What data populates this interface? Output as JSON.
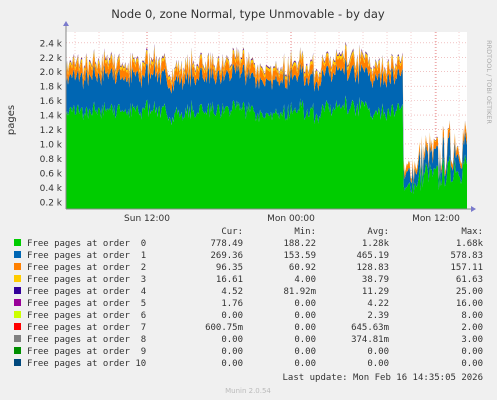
{
  "title": "Node 0, zone Normal, type Unmovable - by day",
  "ylabel": "pages",
  "side_label": "RRDTOOL / TOBI OETIKER",
  "footer_update": "Last update: Mon Feb 16 14:35:05 2026",
  "footer_version": "Munin 2.0.54",
  "colors": {
    "background": "#f0f0f0",
    "plot_bg": "#ffffff",
    "grid": "#e8a0a0",
    "axis": "#888888",
    "text": "#333333"
  },
  "chart_data": {
    "type": "area",
    "stacked": true,
    "x_axis": "time",
    "x_ticks": [
      "Sun 12:00",
      "Mon 00:00",
      "Mon 12:00"
    ],
    "y_ticks": [
      "0.2 k",
      "0.4 k",
      "0.6 k",
      "0.8 k",
      "1.0 k",
      "1.2 k",
      "1.4 k",
      "1.6 k",
      "1.8 k",
      "2.0 k",
      "2.2 k",
      "2.4 k"
    ],
    "ylim": [
      100,
      2550
    ],
    "grid": true,
    "legend_placement": "bottom",
    "legend_columns": [
      "Cur:",
      "Min:",
      "Avg:",
      "Max:"
    ],
    "series": [
      {
        "name": "Free pages at order  0",
        "color": "#00cc00",
        "cur": "778.49",
        "min": "188.22",
        "avg": "1.28k",
        "max": "1.68k",
        "approx_profile": [
          1400,
          1480,
          1450,
          1500,
          1420,
          1460,
          1510,
          1390,
          1450,
          1480,
          1420,
          1470,
          1500,
          1440,
          1380,
          1460,
          1490,
          1430,
          1470,
          1500,
          1520,
          1460,
          1440,
          1480,
          300,
          450,
          520,
          600,
          560,
          650,
          700,
          780
        ]
      },
      {
        "name": "Free pages at order  1",
        "color": "#0066b3",
        "cur": "269.36",
        "min": "153.59",
        "avg": "465.19",
        "max": "578.83",
        "approx_profile": [
          460,
          480,
          470,
          490,
          460,
          470,
          500,
          450,
          470,
          480,
          460,
          470,
          490,
          460,
          450,
          470,
          480,
          460,
          470,
          490,
          480,
          470,
          460,
          480,
          170,
          190,
          210,
          230,
          220,
          240,
          250,
          270
        ]
      },
      {
        "name": "Free pages at order  2",
        "color": "#ff8000",
        "cur": "96.35",
        "min": "60.92",
        "avg": "128.83",
        "max": "157.11",
        "approx_profile": [
          130,
          140,
          135,
          145,
          130,
          135,
          150,
          125,
          135,
          140,
          130,
          135,
          145,
          130,
          125,
          135,
          140,
          130,
          135,
          145,
          140,
          135,
          130,
          140,
          65,
          70,
          75,
          80,
          78,
          85,
          90,
          96
        ]
      },
      {
        "name": "Free pages at order  3",
        "color": "#ffcc00",
        "cur": "16.61",
        "min": "4.00",
        "avg": "38.79",
        "max": "61.63",
        "approx_profile": [
          40,
          45,
          42,
          48,
          40,
          42,
          50,
          38,
          42,
          45,
          40,
          42,
          48,
          40,
          38,
          42,
          45,
          40,
          42,
          48,
          45,
          42,
          40,
          45,
          8,
          10,
          12,
          14,
          12,
          14,
          15,
          17
        ]
      },
      {
        "name": "Free pages at order  4",
        "color": "#330099",
        "cur": "4.52",
        "min": "81.92m",
        "avg": "11.29",
        "max": "25.00",
        "approx_profile": [
          12,
          14,
          12,
          15,
          11,
          12,
          16,
          10,
          12,
          13,
          11,
          12,
          14,
          11,
          10,
          12,
          13,
          11,
          12,
          14,
          13,
          12,
          11,
          13,
          2,
          3,
          3,
          4,
          4,
          4,
          5,
          5
        ]
      },
      {
        "name": "Free pages at order  5",
        "color": "#990099",
        "cur": "1.76",
        "min": "0.00",
        "avg": "4.22",
        "max": "16.00",
        "approx_profile": [
          4,
          5,
          4,
          6,
          4,
          4,
          6,
          4,
          4,
          5,
          4,
          4,
          5,
          4,
          4,
          4,
          5,
          4,
          4,
          5,
          5,
          4,
          4,
          5,
          1,
          1,
          1,
          2,
          2,
          2,
          2,
          2
        ]
      },
      {
        "name": "Free pages at order  6",
        "color": "#ccff00",
        "cur": "0.00",
        "min": "0.00",
        "avg": "2.39",
        "max": "8.00",
        "approx_profile": [
          2,
          3,
          2,
          3,
          2,
          2,
          3,
          2,
          2,
          3,
          2,
          2,
          3,
          2,
          2,
          2,
          3,
          2,
          2,
          3,
          3,
          2,
          2,
          3,
          0,
          0,
          0,
          0,
          0,
          0,
          0,
          0
        ]
      },
      {
        "name": "Free pages at order  7",
        "color": "#ff0000",
        "cur": "600.75m",
        "min": "0.00",
        "avg": "645.63m",
        "max": "2.00",
        "approx_profile": [
          1,
          1,
          1,
          1,
          1,
          1,
          1,
          1,
          1,
          1,
          1,
          1,
          1,
          1,
          1,
          1,
          1,
          1,
          1,
          1,
          1,
          1,
          1,
          1,
          0,
          0,
          0,
          0,
          0,
          0,
          0,
          0
        ]
      },
      {
        "name": "Free pages at order  8",
        "color": "#808080",
        "cur": "0.00",
        "min": "0.00",
        "avg": "374.81m",
        "max": "3.00",
        "approx_profile": [
          0,
          1,
          0,
          1,
          0,
          0,
          1,
          0,
          0,
          1,
          0,
          0,
          1,
          0,
          0,
          0,
          1,
          0,
          0,
          1,
          1,
          0,
          0,
          1,
          0,
          0,
          0,
          0,
          0,
          0,
          0,
          0
        ]
      },
      {
        "name": "Free pages at order  9",
        "color": "#008f00",
        "cur": "0.00",
        "min": "0.00",
        "avg": "0.00",
        "max": "0.00",
        "approx_profile": [
          0,
          0,
          0,
          0,
          0,
          0,
          0,
          0,
          0,
          0,
          0,
          0,
          0,
          0,
          0,
          0,
          0,
          0,
          0,
          0,
          0,
          0,
          0,
          0,
          0,
          0,
          0,
          0,
          0,
          0,
          0,
          0
        ]
      },
      {
        "name": "Free pages at order 10",
        "color": "#00487d",
        "cur": "0.00",
        "min": "0.00",
        "avg": "0.00",
        "max": "0.00",
        "approx_profile": [
          0,
          0,
          0,
          0,
          0,
          0,
          0,
          0,
          0,
          0,
          0,
          0,
          0,
          0,
          0,
          0,
          0,
          0,
          0,
          0,
          0,
          0,
          0,
          0,
          0,
          0,
          0,
          0,
          0,
          0,
          0,
          0
        ]
      }
    ]
  }
}
